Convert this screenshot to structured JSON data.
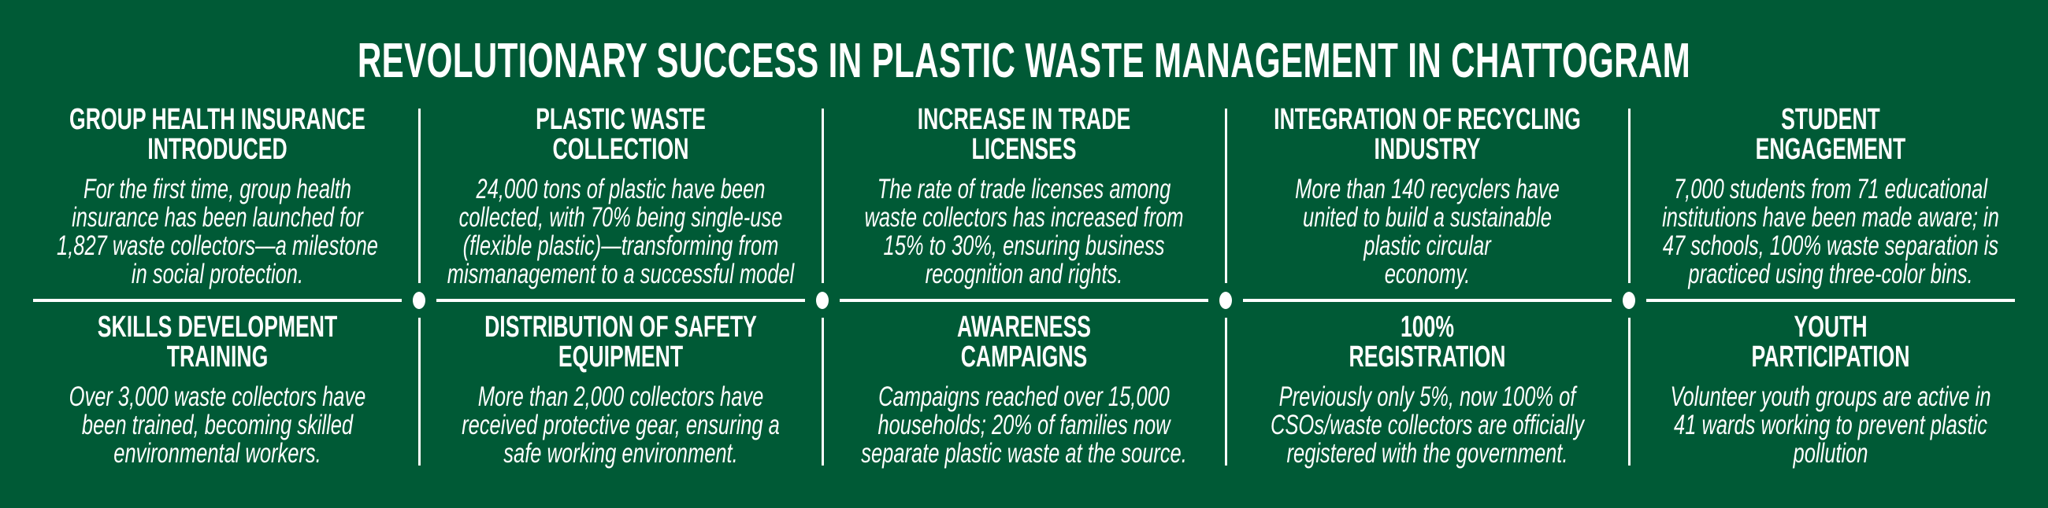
{
  "title": "REVOLUTIONARY SUCCESS IN PLASTIC WASTE MANAGEMENT IN CHATTOGRAM",
  "colors": {
    "background": "#005a36",
    "text": "#ffffff"
  },
  "top_row": [
    {
      "heading": "GROUP HEALTH INSURANCE\nINTRODUCED",
      "text": "For the first time, group health\ninsurance has been launched for\n1,827 waste collectors—a milestone\nin social protection."
    },
    {
      "heading": "PLASTIC WASTE\nCOLLECTION",
      "text": "24,000 tons of plastic have been\ncollected, with 70% being single-use\n(flexible plastic)—transforming from\nmismanagement to a successful model"
    },
    {
      "heading": "INCREASE IN TRADE\nLICENSES",
      "text": "The rate of trade licenses among\nwaste collectors has increased from\n15% to 30%, ensuring business\nrecognition and rights."
    },
    {
      "heading": "INTEGRATION OF RECYCLING\nINDUSTRY",
      "text": "More than 140 recyclers have\nunited to build a sustainable\nplastic circular\neconomy."
    },
    {
      "heading": "STUDENT\nENGAGEMENT",
      "text": "7,000 students from 71 educational\ninstitutions have been made aware; in\n47 schools, 100% waste separation is\npracticed using three-color bins."
    }
  ],
  "bottom_row": [
    {
      "heading": "SKILLS DEVELOPMENT\nTRAINING",
      "text": "Over 3,000 waste collectors have\nbeen trained, becoming skilled\nenvironmental workers."
    },
    {
      "heading": "DISTRIBUTION OF SAFETY\nEQUIPMENT",
      "text": "More than 2,000 collectors have\nreceived protective gear, ensuring a\nsafe working environment."
    },
    {
      "heading": "AWARENESS\nCAMPAIGNS",
      "text": "Campaigns reached over 15,000\nhouseholds; 20% of families now\nseparate plastic waste at the source."
    },
    {
      "heading": "100%\nREGISTRATION",
      "text": "Previously only 5%, now 100% of\nCSOs/waste collectors are officially\nregistered with the government."
    },
    {
      "heading": "YOUTH\nPARTICIPATION",
      "text": "Volunteer youth groups are active in\n41 wards working to prevent plastic\npollution"
    }
  ]
}
